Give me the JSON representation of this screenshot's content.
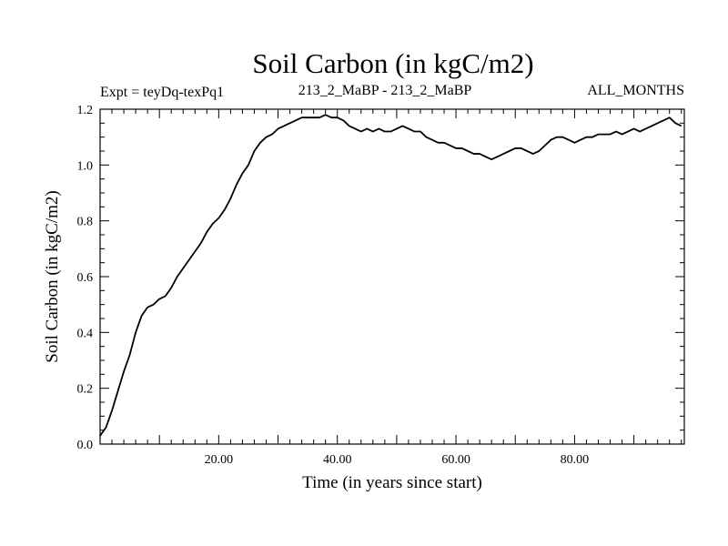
{
  "chart_data": {
    "type": "line",
    "title": "Soil Carbon (in kgC/m2)",
    "subtitle_left": "Expt = teyDq-texPq1",
    "subtitle_center": "213_2_MaBP - 213_2_MaBP",
    "subtitle_right": "ALL_MONTHS",
    "xlabel": "Time (in years since start)",
    "ylabel": "Soil Carbon (in kgC/m2)",
    "xlim": [
      0,
      98.5
    ],
    "ylim": [
      0,
      1.2
    ],
    "x_ticks": [
      20,
      40,
      60,
      80
    ],
    "x_tick_labels": [
      "20.00",
      "40.00",
      "60.00",
      "80.00"
    ],
    "y_ticks": [
      0,
      0.2,
      0.4,
      0.6,
      0.8,
      1.0,
      1.2
    ],
    "y_tick_labels": [
      "0.0",
      "0.2",
      "0.4",
      "0.6",
      "0.8",
      "1.0",
      "1.2"
    ],
    "grid": false,
    "series": [
      {
        "name": "Soil Carbon",
        "color": "#000000",
        "x": [
          0,
          1,
          2,
          3,
          4,
          5,
          6,
          7,
          8,
          9,
          10,
          11,
          12,
          13,
          14,
          15,
          16,
          17,
          18,
          19,
          20,
          21,
          22,
          23,
          24,
          25,
          26,
          27,
          28,
          29,
          30,
          31,
          32,
          33,
          34,
          35,
          36,
          37,
          38,
          39,
          40,
          41,
          42,
          43,
          44,
          45,
          46,
          47,
          48,
          49,
          50,
          51,
          52,
          53,
          54,
          55,
          56,
          57,
          58,
          59,
          60,
          61,
          62,
          63,
          64,
          65,
          66,
          67,
          68,
          69,
          70,
          71,
          72,
          73,
          74,
          75,
          76,
          77,
          78,
          79,
          80,
          81,
          82,
          83,
          84,
          85,
          86,
          87,
          88,
          89,
          90,
          91,
          92,
          93,
          94,
          95,
          96,
          97,
          98
        ],
        "values": [
          0.03,
          0.06,
          0.12,
          0.19,
          0.26,
          0.32,
          0.4,
          0.46,
          0.49,
          0.5,
          0.52,
          0.53,
          0.56,
          0.6,
          0.63,
          0.66,
          0.69,
          0.72,
          0.76,
          0.79,
          0.81,
          0.84,
          0.88,
          0.93,
          0.97,
          1.0,
          1.05,
          1.08,
          1.1,
          1.11,
          1.13,
          1.14,
          1.15,
          1.16,
          1.17,
          1.17,
          1.17,
          1.17,
          1.18,
          1.17,
          1.17,
          1.16,
          1.14,
          1.13,
          1.12,
          1.13,
          1.12,
          1.13,
          1.12,
          1.12,
          1.13,
          1.14,
          1.13,
          1.12,
          1.12,
          1.1,
          1.09,
          1.08,
          1.08,
          1.07,
          1.06,
          1.06,
          1.05,
          1.04,
          1.04,
          1.03,
          1.02,
          1.03,
          1.04,
          1.05,
          1.06,
          1.06,
          1.05,
          1.04,
          1.05,
          1.07,
          1.09,
          1.1,
          1.1,
          1.09,
          1.08,
          1.09,
          1.1,
          1.1,
          1.11,
          1.11,
          1.11,
          1.12,
          1.11,
          1.12,
          1.13,
          1.12,
          1.13,
          1.14,
          1.15,
          1.16,
          1.17,
          1.15,
          1.14
        ]
      }
    ]
  }
}
